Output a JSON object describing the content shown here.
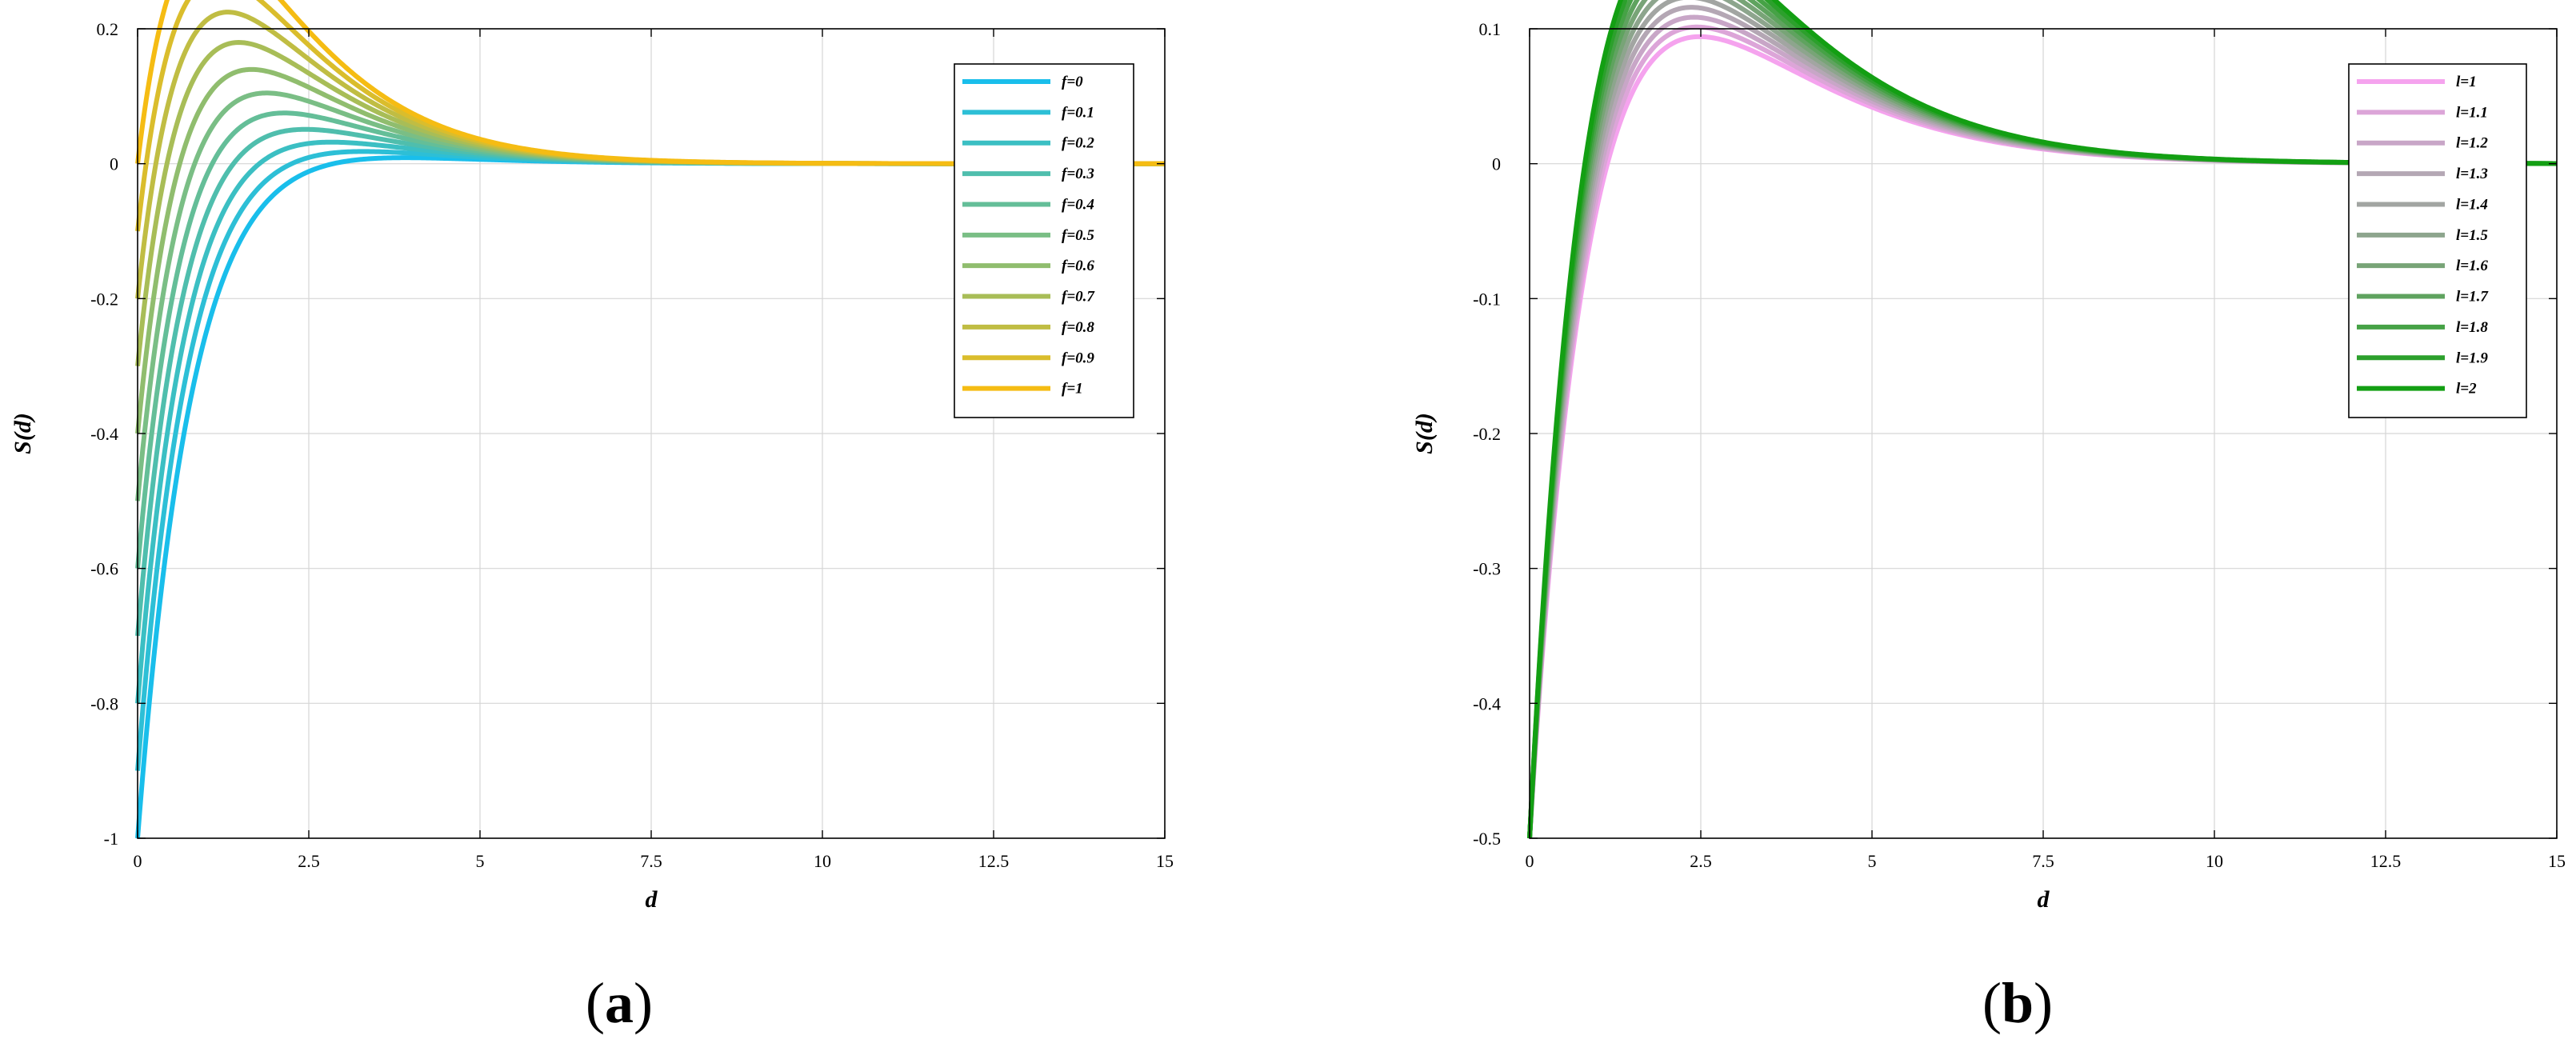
{
  "chart_data": [
    {
      "type": "line",
      "panel_label": "a",
      "xlabel": "d",
      "ylabel": "S(d)",
      "xlim": [
        0,
        15
      ],
      "ylim": [
        -1,
        0.2
      ],
      "xticks": [
        0,
        2.5,
        5,
        7.5,
        10,
        12.5,
        15
      ],
      "xtick_labels": [
        "0",
        "2.5",
        "5",
        "7.5",
        "10",
        "12.5",
        "15"
      ],
      "yticks": [
        -1,
        -0.8,
        -0.6,
        -0.4,
        -0.2,
        0,
        0.2
      ],
      "ytick_labels": [
        "-1",
        "-0.8",
        "-0.6",
        "-0.4",
        "-0.2",
        "0",
        "0.2"
      ],
      "grid": true,
      "legend": "top-right",
      "series": [
        {
          "name": "f=0",
          "color": "#19BEEB",
          "y0": -1.0
        },
        {
          "name": "f=0.1",
          "color": "#2DBFD6",
          "y0": -0.9
        },
        {
          "name": "f=0.2",
          "color": "#3BBFC3",
          "y0": -0.8
        },
        {
          "name": "f=0.3",
          "color": "#4FBEAD",
          "y0": -0.7
        },
        {
          "name": "f=0.4",
          "color": "#64BE98",
          "y0": -0.6
        },
        {
          "name": "f=0.5",
          "color": "#7ABE85",
          "y0": -0.5
        },
        {
          "name": "f=0.6",
          "color": "#90BD6E",
          "y0": -0.4
        },
        {
          "name": "f=0.7",
          "color": "#A8BD57",
          "y0": -0.3
        },
        {
          "name": "f=0.8",
          "color": "#C0BD43",
          "y0": -0.2
        },
        {
          "name": "f=0.9",
          "color": "#DABD2C",
          "y0": -0.1
        },
        {
          "name": "f=1",
          "color": "#F5BC13",
          "y0": 0.0
        }
      ]
    },
    {
      "type": "line",
      "panel_label": "b",
      "xlabel": "d",
      "ylabel": "S(d)",
      "xlim": [
        0,
        15
      ],
      "ylim": [
        -0.5,
        0.1
      ],
      "xticks": [
        0,
        2.5,
        5,
        7.5,
        10,
        12.5,
        15
      ],
      "xtick_labels": [
        "0",
        "2.5",
        "5",
        "7.5",
        "10",
        "12.5",
        "15"
      ],
      "yticks": [
        -0.5,
        -0.4,
        -0.3,
        -0.2,
        -0.1,
        0,
        0.1
      ],
      "ytick_labels": [
        "-0.5",
        "-0.4",
        "-0.3",
        "-0.2",
        "-0.1",
        "0",
        "0.1"
      ],
      "grid": true,
      "legend": "top-right",
      "series": [
        {
          "name": "l=1",
          "color": "#F5A3EE",
          "l": 1.0
        },
        {
          "name": "l=1.1",
          "color": "#DCA5D8",
          "l": 1.1
        },
        {
          "name": "l=1.2",
          "color": "#C8A6C7",
          "l": 1.2
        },
        {
          "name": "l=1.3",
          "color": "#B4A7B4",
          "l": 1.3
        },
        {
          "name": "l=1.4",
          "color": "#A2A5A2",
          "l": 1.4
        },
        {
          "name": "l=1.5",
          "color": "#8DA58D",
          "l": 1.5
        },
        {
          "name": "l=1.6",
          "color": "#78A477",
          "l": 1.6
        },
        {
          "name": "l=1.7",
          "color": "#5FA35F",
          "l": 1.7
        },
        {
          "name": "l=1.8",
          "color": "#46A246",
          "l": 1.8
        },
        {
          "name": "l=1.9",
          "color": "#2CA02C",
          "l": 1.9
        },
        {
          "name": "l=2",
          "color": "#139F13",
          "l": 2.0
        }
      ]
    }
  ]
}
